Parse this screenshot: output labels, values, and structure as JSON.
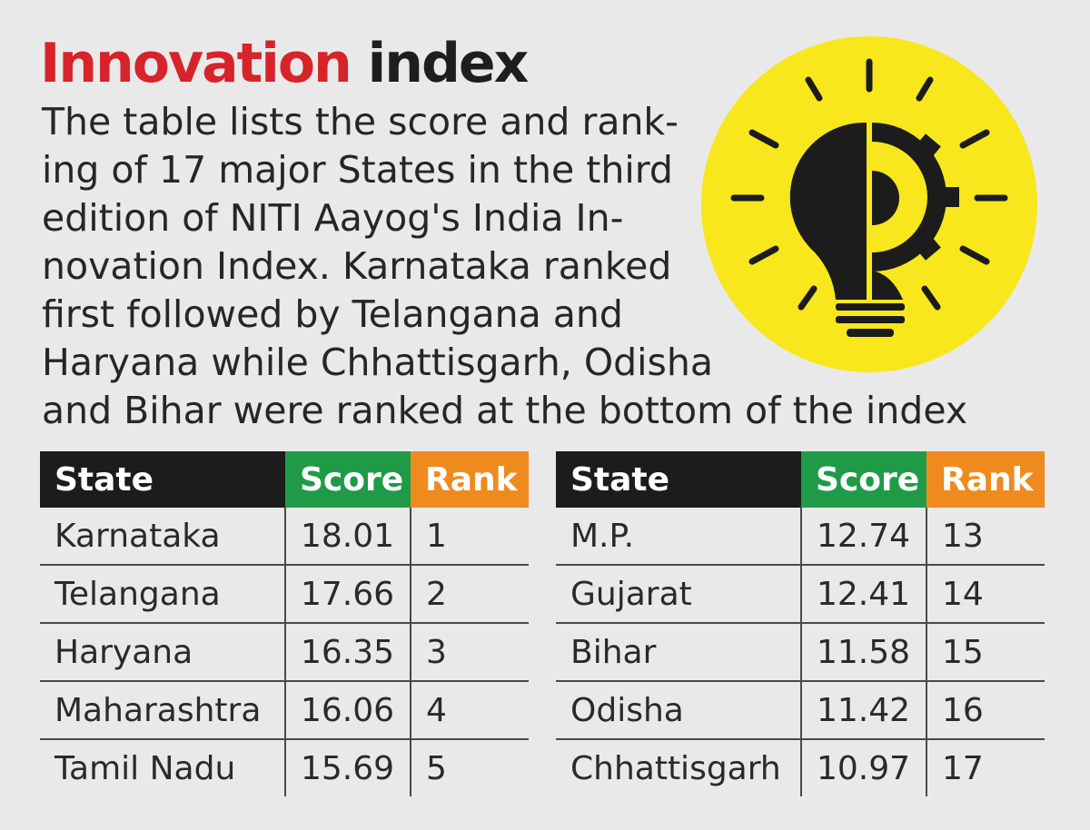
{
  "title": {
    "part1": "Innovation",
    "part2": "index"
  },
  "intro_lines": [
    "The table lists the score and rank-",
    "ing of 17 major States in the third",
    "edition of NITI Aayog's India In-",
    "novation Index. Karnataka ranked",
    "first followed by Telangana and",
    "Haryana while Chhattisgarh, Odisha",
    "and Bihar were ranked at the bottom of the index"
  ],
  "illustration": {
    "icon": "lightbulb-gear-icon",
    "circle_color": "#f7e71c"
  },
  "colors": {
    "title_accent": "#d7232a",
    "state_header": "#1c1c1c",
    "score_header": "#1f9b48",
    "rank_header": "#ef8a1f"
  },
  "headers": {
    "state": "State",
    "score": "Score",
    "rank": "Rank"
  },
  "tables": [
    {
      "rows": [
        {
          "state": "Karnataka",
          "score": "18.01",
          "rank": "1"
        },
        {
          "state": "Telangana",
          "score": "17.66",
          "rank": "2"
        },
        {
          "state": "Haryana",
          "score": "16.35",
          "rank": "3"
        },
        {
          "state": "Maharashtra",
          "score": "16.06",
          "rank": "4"
        },
        {
          "state": "Tamil Nadu",
          "score": "15.69",
          "rank": "5"
        }
      ]
    },
    {
      "rows": [
        {
          "state": "M.P.",
          "score": "12.74",
          "rank": "13"
        },
        {
          "state": "Gujarat",
          "score": "12.41",
          "rank": "14"
        },
        {
          "state": "Bihar",
          "score": "11.58",
          "rank": "15"
        },
        {
          "state": "Odisha",
          "score": "11.42",
          "rank": "16"
        },
        {
          "state": "Chhattisgarh",
          "score": "10.97",
          "rank": "17"
        }
      ]
    }
  ]
}
